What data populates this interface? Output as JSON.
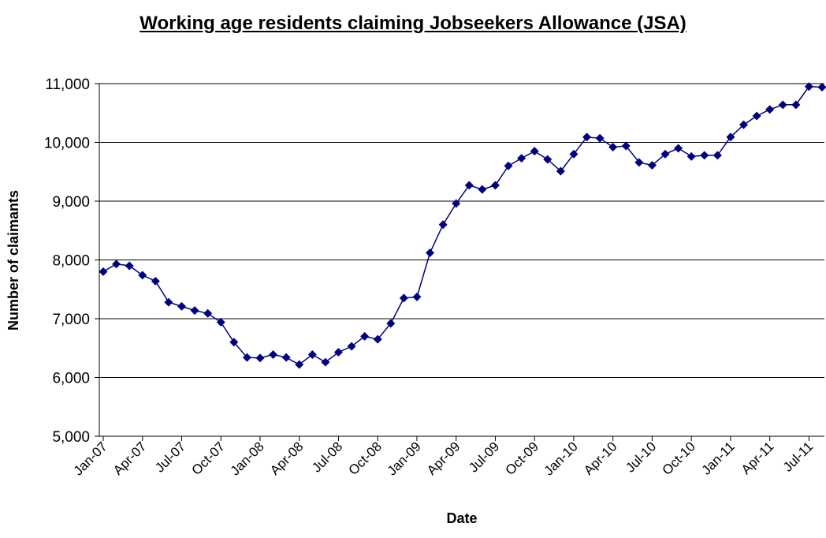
{
  "chart_data": {
    "type": "line",
    "title": "Working age residents claiming Jobseekers Allowance (JSA)",
    "xlabel": "Date",
    "ylabel": "Number of claimants",
    "ylim": [
      5000,
      11000
    ],
    "yticks": [
      5000,
      6000,
      7000,
      8000,
      9000,
      10000,
      11000
    ],
    "ytick_labels": [
      "5,000",
      "6,000",
      "7,000",
      "8,000",
      "9,000",
      "10,000",
      "11,000"
    ],
    "xtick_labels": [
      "Jan-07",
      "Apr-07",
      "Jul-07",
      "Oct-07",
      "Jan-08",
      "Apr-08",
      "Jul-08",
      "Oct-08",
      "Jan-09",
      "Apr-09",
      "Jul-09",
      "Oct-09",
      "Jan-10",
      "Apr-10",
      "Jul-10",
      "Oct-10",
      "Jan-11",
      "Apr-11",
      "Jul-11"
    ],
    "grid": "horizontal",
    "legend": "none",
    "colors": {
      "line": "#00007f",
      "marker": "#00007f",
      "grid": "#000000"
    },
    "x": [
      "Jan-07",
      "Feb-07",
      "Mar-07",
      "Apr-07",
      "May-07",
      "Jun-07",
      "Jul-07",
      "Aug-07",
      "Sep-07",
      "Oct-07",
      "Nov-07",
      "Dec-07",
      "Jan-08",
      "Feb-08",
      "Mar-08",
      "Apr-08",
      "May-08",
      "Jun-08",
      "Jul-08",
      "Aug-08",
      "Sep-08",
      "Oct-08",
      "Nov-08",
      "Dec-08",
      "Jan-09",
      "Feb-09",
      "Mar-09",
      "Apr-09",
      "May-09",
      "Jun-09",
      "Jul-09",
      "Aug-09",
      "Sep-09",
      "Oct-09",
      "Nov-09",
      "Dec-09",
      "Jan-10",
      "Feb-10",
      "Mar-10",
      "Apr-10",
      "May-10",
      "Jun-10",
      "Jul-10",
      "Aug-10",
      "Sep-10",
      "Oct-10",
      "Nov-10",
      "Dec-10",
      "Jan-11",
      "Feb-11",
      "Mar-11",
      "Apr-11",
      "May-11",
      "Jun-11",
      "Jul-11",
      "Aug-11"
    ],
    "series": [
      {
        "values": [
          7800,
          7930,
          7900,
          7740,
          7640,
          7280,
          7210,
          7140,
          7090,
          6940,
          6600,
          6340,
          6330,
          6390,
          6340,
          6220,
          6390,
          6260,
          6430,
          6530,
          6700,
          6650,
          6920,
          7350,
          7370,
          8120,
          8600,
          8960,
          9270,
          9200,
          9270,
          9600,
          9730,
          9850,
          9710,
          9510,
          9800,
          10090,
          10070,
          9920,
          9940,
          9660,
          9610,
          9800,
          9900,
          9760,
          9780,
          9780,
          10090,
          10300,
          10450,
          10560,
          10640,
          10640,
          10950,
          10940
        ]
      }
    ]
  }
}
